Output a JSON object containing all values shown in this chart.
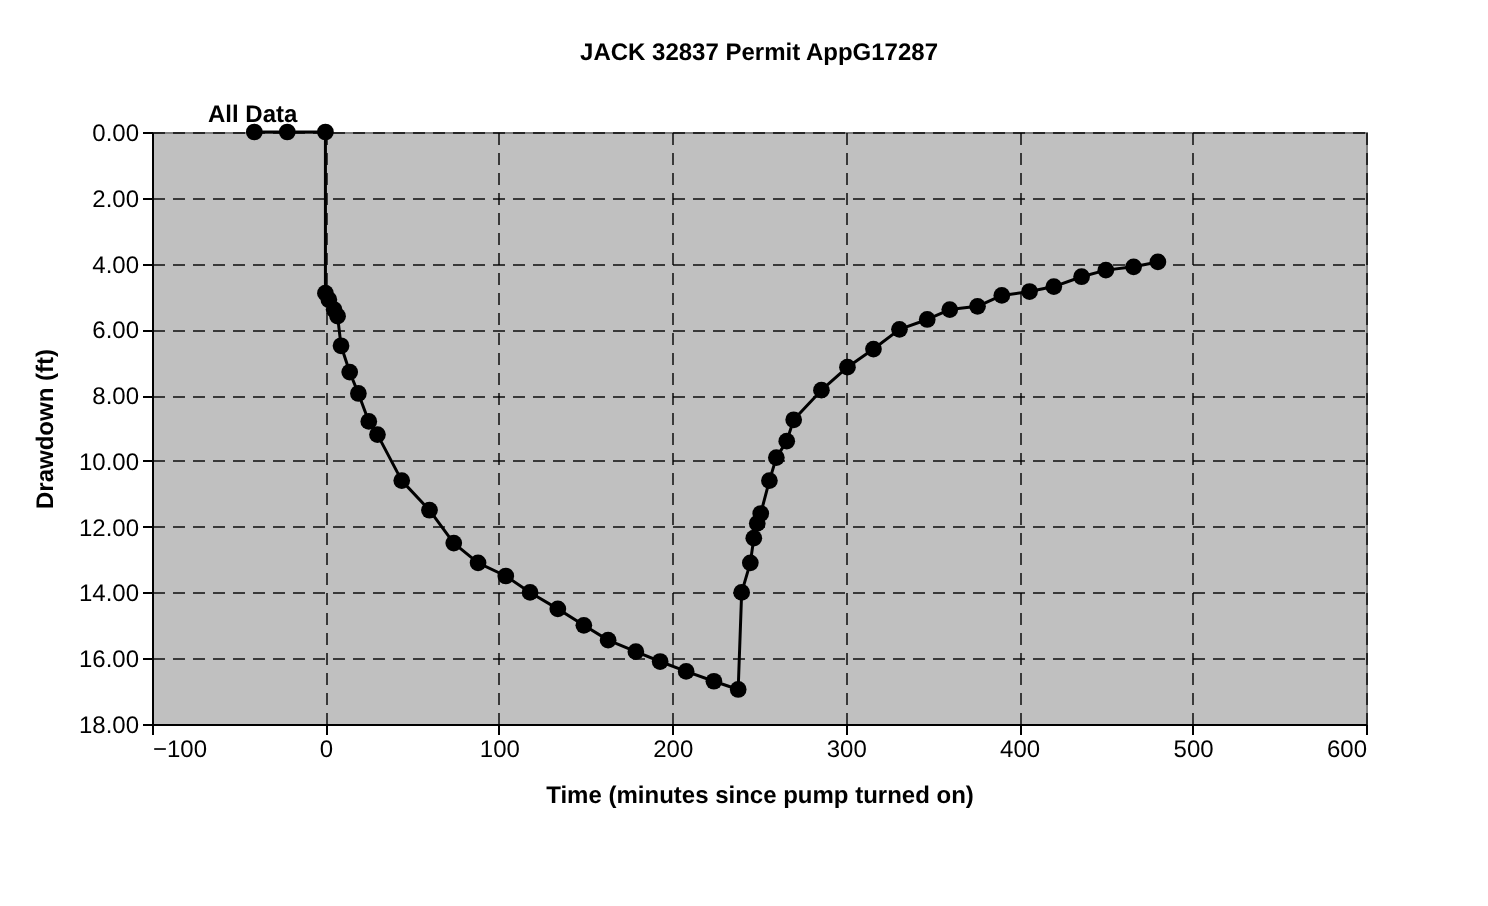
{
  "chart_data": {
    "type": "line",
    "title": "JACK 32837     Permit AppG17287",
    "annotations": [
      "All Data"
    ],
    "xlabel": "Time (minutes since pump turned on)",
    "ylabel": "Drawdown (ft)",
    "x": [
      -41,
      -22,
      0,
      0,
      2,
      5,
      7,
      9,
      14,
      19,
      25,
      30,
      44,
      60,
      74,
      88,
      104,
      118,
      134,
      149,
      163,
      179,
      193,
      208,
      224,
      238,
      240,
      245,
      247,
      249,
      251,
      256,
      260,
      266,
      270,
      286,
      301,
      316,
      331,
      347,
      360,
      376,
      390,
      406,
      420,
      436,
      450,
      466,
      480
    ],
    "series": [
      {
        "color": "#000000",
        "values": [
          0,
          0,
          0,
          4.9,
          5.1,
          5.4,
          5.6,
          6.5,
          7.3,
          7.95,
          8.8,
          9.2,
          10.6,
          11.5,
          12.5,
          13.1,
          13.5,
          14.0,
          14.5,
          15.0,
          15.45,
          15.8,
          16.1,
          16.4,
          16.7,
          16.95,
          14.0,
          13.1,
          12.35,
          11.9,
          11.6,
          10.6,
          9.9,
          9.4,
          8.75,
          7.85,
          7.15,
          6.6,
          6.0,
          5.7,
          5.4,
          5.3,
          4.97,
          4.85,
          4.7,
          4.4,
          4.2,
          4.1,
          3.95
        ]
      }
    ],
    "xlim": [
      -100,
      600
    ],
    "xticks": [
      -100,
      0,
      100,
      200,
      300,
      400,
      500,
      600
    ],
    "ylim": [
      18,
      0
    ],
    "yticks": [
      {
        "value": 0,
        "label": "0.00"
      },
      {
        "value": 2,
        "label": "2.00"
      },
      {
        "value": 4,
        "label": "4.00"
      },
      {
        "value": 6,
        "label": "6.00"
      },
      {
        "value": 8,
        "label": "8.00"
      },
      {
        "value": 10,
        "label": "10.00"
      },
      {
        "value": 12,
        "label": "12.00"
      },
      {
        "value": 14,
        "label": "14.00"
      },
      {
        "value": 16,
        "label": "16.00"
      },
      {
        "value": 18,
        "label": "18.00"
      }
    ],
    "grid": true,
    "marker": "circle",
    "line_style": "solid"
  }
}
